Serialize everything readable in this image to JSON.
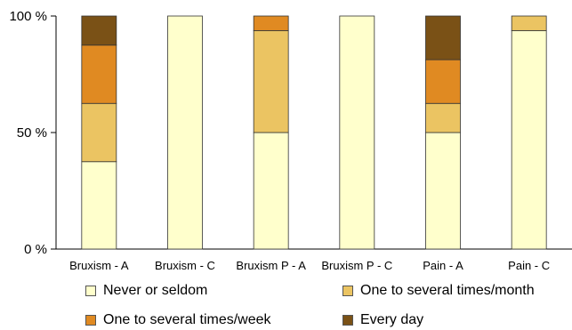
{
  "chart_data": {
    "type": "bar",
    "stacked": true,
    "normalized_percent": true,
    "categories": [
      "Bruxism - A",
      "Bruxism - C",
      "Bruxism P - A",
      "Bruxism P - C",
      "Pain - A",
      "Pain - C"
    ],
    "y_ticks": [
      "0 %",
      "50 %",
      "100 %"
    ],
    "ylim": [
      0,
      100
    ],
    "grid": false,
    "legend_position": "bottom",
    "series": [
      {
        "name": "Never or seldom",
        "color": "#FFFFCC",
        "values": [
          37.5,
          100,
          50,
          100,
          50,
          93.75
        ]
      },
      {
        "name": "One to several times/month",
        "color": "#EBC462",
        "values": [
          25,
          0,
          43.75,
          0,
          12.5,
          6.25
        ]
      },
      {
        "name": "One to several times/week",
        "color": "#E08A22",
        "values": [
          25,
          0,
          6.25,
          0,
          18.75,
          0
        ]
      },
      {
        "name": "Every day",
        "color": "#7A5116",
        "values": [
          12.5,
          0,
          0,
          0,
          18.75,
          0
        ]
      }
    ]
  }
}
